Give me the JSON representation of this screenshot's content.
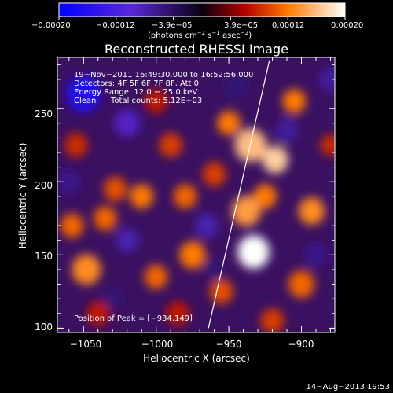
{
  "chart_data": {
    "type": "heatmap",
    "title": "Reconstructed RHESSI Image",
    "xlabel": "Heliocentric X (arcsec)",
    "ylabel": "Heliocentric Y (arcsec)",
    "xlim": [
      -1068,
      -877
    ],
    "ylim": [
      97,
      285
    ],
    "x_ticks": [
      -1050,
      -1000,
      -950,
      -900
    ],
    "x_tick_labels": [
      "−1050",
      "−1000",
      "−950",
      "−900"
    ],
    "y_ticks": [
      100,
      150,
      200,
      250
    ],
    "y_tick_labels": [
      "100",
      "150",
      "200",
      "250"
    ],
    "colorbar": {
      "range": [
        -0.0002,
        0.0002
      ],
      "tick_labels": [
        "−0.00020",
        "−0.00012",
        "−3.9e−05",
        "3.9e−05",
        "0.00012",
        "0.00020"
      ],
      "unit_main": "(photons cm",
      "unit_sup1": "−2",
      "unit_mid": " s",
      "unit_sup2": "−1",
      "unit_end": " asec",
      "unit_sup3": "−2",
      "unit_close": ")"
    },
    "annotations": {
      "time_range": "19−Nov−2011 16:49:30.000 to 16:52:56.000",
      "detectors": "Detectors: 4F 5F 6F 7F 8F, Att 0",
      "energy": "Energy Range: 12.0 − 25.0 keV",
      "clean_label": "Clean",
      "total_counts": "Total counts: 5.12E+03",
      "peak": "Position of Peak = [−934,149]"
    },
    "peak_position": [
      -934,
      149
    ],
    "limb_line": {
      "x": [
        -964,
        -922
      ],
      "y": [
        100,
        283
      ]
    },
    "features": [
      {
        "x": -933,
        "y": 152,
        "v": 0.0002,
        "r": 11
      },
      {
        "x": -918,
        "y": 215,
        "v": 0.00017,
        "r": 9
      },
      {
        "x": -935,
        "y": 225,
        "v": 0.00016,
        "r": 11
      },
      {
        "x": -938,
        "y": 180,
        "v": 0.00014,
        "r": 10
      },
      {
        "x": -925,
        "y": 190,
        "v": 0.00012,
        "r": 8
      },
      {
        "x": -950,
        "y": 240,
        "v": 0.00012,
        "r": 8
      },
      {
        "x": -905,
        "y": 255,
        "v": 0.00012,
        "r": 8
      },
      {
        "x": -893,
        "y": 180,
        "v": 0.00013,
        "r": 9
      },
      {
        "x": -900,
        "y": 130,
        "v": 0.00011,
        "r": 9
      },
      {
        "x": -955,
        "y": 125,
        "v": 0.0001,
        "r": 8
      },
      {
        "x": -975,
        "y": 150,
        "v": 0.00012,
        "r": 9
      },
      {
        "x": -1000,
        "y": 135,
        "v": 0.00011,
        "r": 8
      },
      {
        "x": -1048,
        "y": 140,
        "v": 0.00013,
        "r": 10
      },
      {
        "x": -1058,
        "y": 170,
        "v": 0.00011,
        "r": 8
      },
      {
        "x": -1035,
        "y": 175,
        "v": 0.00011,
        "r": 8
      },
      {
        "x": -1028,
        "y": 195,
        "v": 0.0001,
        "r": 8
      },
      {
        "x": -1010,
        "y": 190,
        "v": 0.00012,
        "r": 8
      },
      {
        "x": -980,
        "y": 190,
        "v": 0.00011,
        "r": 8
      },
      {
        "x": -960,
        "y": 205,
        "v": 9e-05,
        "r": 8
      },
      {
        "x": -990,
        "y": 225,
        "v": 9e-05,
        "r": 8
      },
      {
        "x": -1055,
        "y": 225,
        "v": 8e-05,
        "r": 8
      },
      {
        "x": -1000,
        "y": 255,
        "v": 7e-05,
        "r": 8
      },
      {
        "x": -1040,
        "y": 110,
        "v": 7e-05,
        "r": 8
      },
      {
        "x": -985,
        "y": 110,
        "v": 7e-05,
        "r": 8
      },
      {
        "x": -920,
        "y": 105,
        "v": 9e-05,
        "r": 8
      },
      {
        "x": -880,
        "y": 225,
        "v": 8e-05,
        "r": 7
      },
      {
        "x": -1050,
        "y": 260,
        "v": -0.00016,
        "r": 12
      },
      {
        "x": -1020,
        "y": 240,
        "v": -9e-05,
        "r": 9
      },
      {
        "x": -1020,
        "y": 160,
        "v": -8e-05,
        "r": 8
      },
      {
        "x": -965,
        "y": 170,
        "v": -8e-05,
        "r": 8
      },
      {
        "x": -910,
        "y": 235,
        "v": -7e-05,
        "r": 8
      },
      {
        "x": -890,
        "y": 150,
        "v": -6e-05,
        "r": 8
      },
      {
        "x": -1060,
        "y": 200,
        "v": -6e-05,
        "r": 8
      },
      {
        "x": -945,
        "y": 265,
        "v": -5e-05,
        "r": 8
      },
      {
        "x": -880,
        "y": 270,
        "v": -7e-05,
        "r": 8
      },
      {
        "x": -960,
        "y": 140,
        "v": -5e-05,
        "r": 7
      },
      {
        "x": -1030,
        "y": 120,
        "v": -5e-05,
        "r": 7
      }
    ]
  },
  "footer": {
    "date": "14−Aug−2013 19:53"
  },
  "colors": {
    "background": "#000000",
    "text": "#ffffff",
    "limb_line": "#ffffff"
  }
}
